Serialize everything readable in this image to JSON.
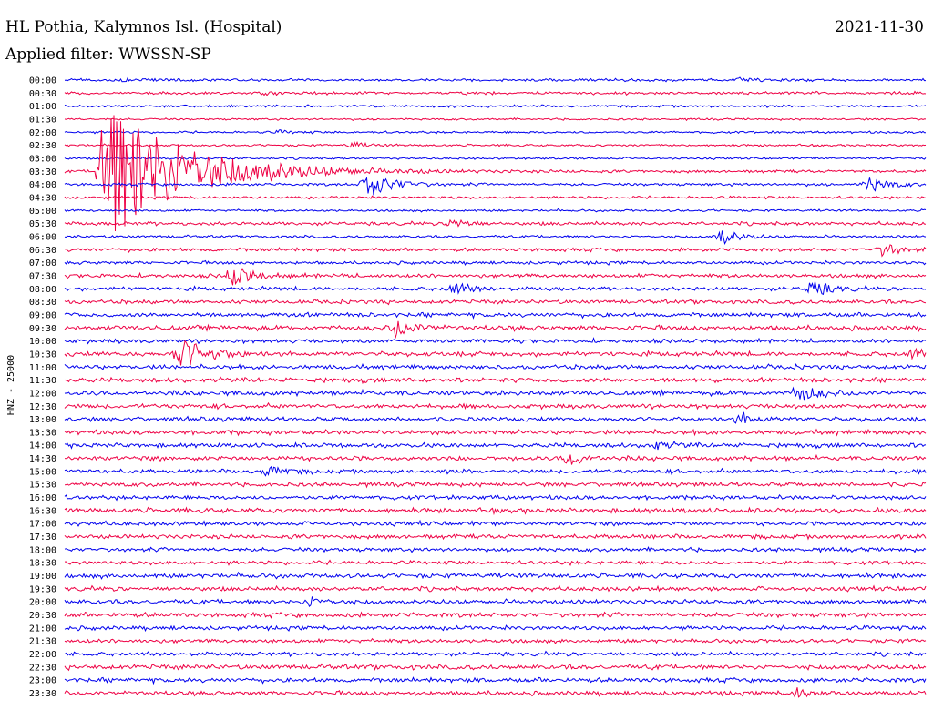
{
  "header": {
    "station": "HL Pothia, Kalymnos Isl. (Hospital)",
    "date": "2021-11-30",
    "filter": "Applied filter: WWSSN-SP"
  },
  "chart_data": {
    "type": "line",
    "ylabel": "HNZ - 25000",
    "row_labels": [
      "00:00",
      "00:30",
      "01:00",
      "01:30",
      "02:00",
      "02:30",
      "03:00",
      "03:30",
      "04:00",
      "04:30",
      "05:00",
      "05:30",
      "06:00",
      "06:30",
      "07:00",
      "07:30",
      "08:00",
      "08:30",
      "09:00",
      "09:30",
      "10:00",
      "10:30",
      "11:00",
      "11:30",
      "12:00",
      "12:30",
      "13:00",
      "13:30",
      "14:00",
      "14:30",
      "15:00",
      "15:30",
      "16:00",
      "16:30",
      "17:00",
      "17:30",
      "18:00",
      "18:30",
      "19:00",
      "19:30",
      "20:00",
      "20:30",
      "21:00",
      "21:30",
      "22:00",
      "22:30",
      "23:00",
      "23:30"
    ],
    "trace_colors": [
      "#0000ee",
      "#ee0044"
    ],
    "events": [
      {
        "row": "00:00",
        "minute": 2.0,
        "amp": 0.25
      },
      {
        "row": "00:00",
        "minute": 23.5,
        "amp": 0.35
      },
      {
        "row": "00:30",
        "minute": 7.0,
        "amp": 0.3
      },
      {
        "row": "02:00",
        "minute": 7.5,
        "amp": 0.25
      },
      {
        "row": "02:30",
        "minute": 10.0,
        "amp": 0.5
      },
      {
        "row": "03:30",
        "minute": 1.3,
        "amp": 12.0
      },
      {
        "row": "04:00",
        "minute": 10.5,
        "amp": 2.2
      },
      {
        "row": "04:00",
        "minute": 28.0,
        "amp": 1.3
      },
      {
        "row": "05:30",
        "minute": 13.5,
        "amp": 0.9
      },
      {
        "row": "06:00",
        "minute": 22.8,
        "amp": 1.2
      },
      {
        "row": "06:30",
        "minute": 28.5,
        "amp": 1.0
      },
      {
        "row": "07:30",
        "minute": 5.8,
        "amp": 1.6
      },
      {
        "row": "08:00",
        "minute": 13.5,
        "amp": 1.1
      },
      {
        "row": "08:00",
        "minute": 26.0,
        "amp": 1.2
      },
      {
        "row": "09:30",
        "minute": 11.5,
        "amp": 1.4
      },
      {
        "row": "10:30",
        "minute": 4.0,
        "amp": 2.6
      },
      {
        "row": "10:30",
        "minute": 29.5,
        "amp": 0.8
      },
      {
        "row": "12:00",
        "minute": 25.5,
        "amp": 1.4
      },
      {
        "row": "13:00",
        "minute": 23.5,
        "amp": 0.9
      },
      {
        "row": "14:00",
        "minute": 20.5,
        "amp": 0.7
      },
      {
        "row": "14:30",
        "minute": 17.5,
        "amp": 1.1
      },
      {
        "row": "15:00",
        "minute": 7.0,
        "amp": 0.8
      },
      {
        "row": "20:00",
        "minute": 8.5,
        "amp": 0.8
      },
      {
        "row": "23:30",
        "minute": 25.5,
        "amp": 0.8
      }
    ]
  }
}
